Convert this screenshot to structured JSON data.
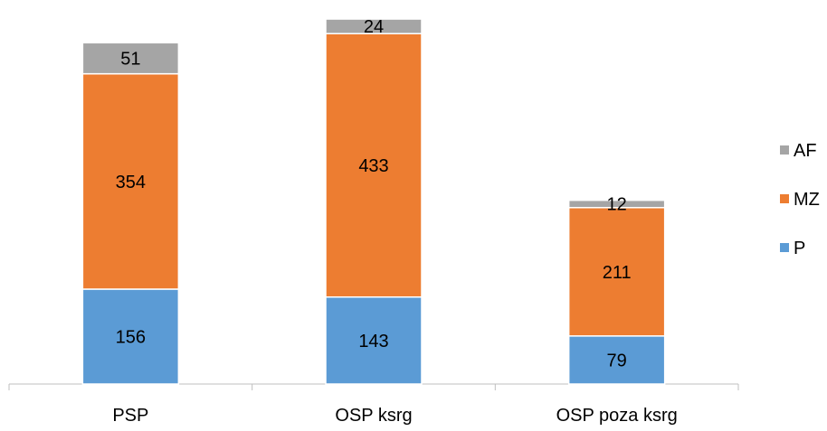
{
  "chart_data": {
    "type": "bar",
    "stacked": true,
    "title": "",
    "xlabel": "",
    "ylabel": "",
    "categories": [
      "PSP",
      "OSP ksrg",
      "OSP poza ksrg"
    ],
    "series": [
      {
        "name": "P",
        "color": "#5b9bd5",
        "values": [
          156,
          143,
          79
        ]
      },
      {
        "name": "MZ",
        "color": "#ed7d31",
        "values": [
          354,
          433,
          211
        ]
      },
      {
        "name": "AF",
        "color": "#a5a5a5",
        "values": [
          51,
          24,
          12
        ]
      }
    ],
    "ylim": [
      0,
      609
    ],
    "grid": false,
    "legend_position": "right",
    "legend_order": [
      "AF",
      "MZ",
      "P"
    ]
  }
}
